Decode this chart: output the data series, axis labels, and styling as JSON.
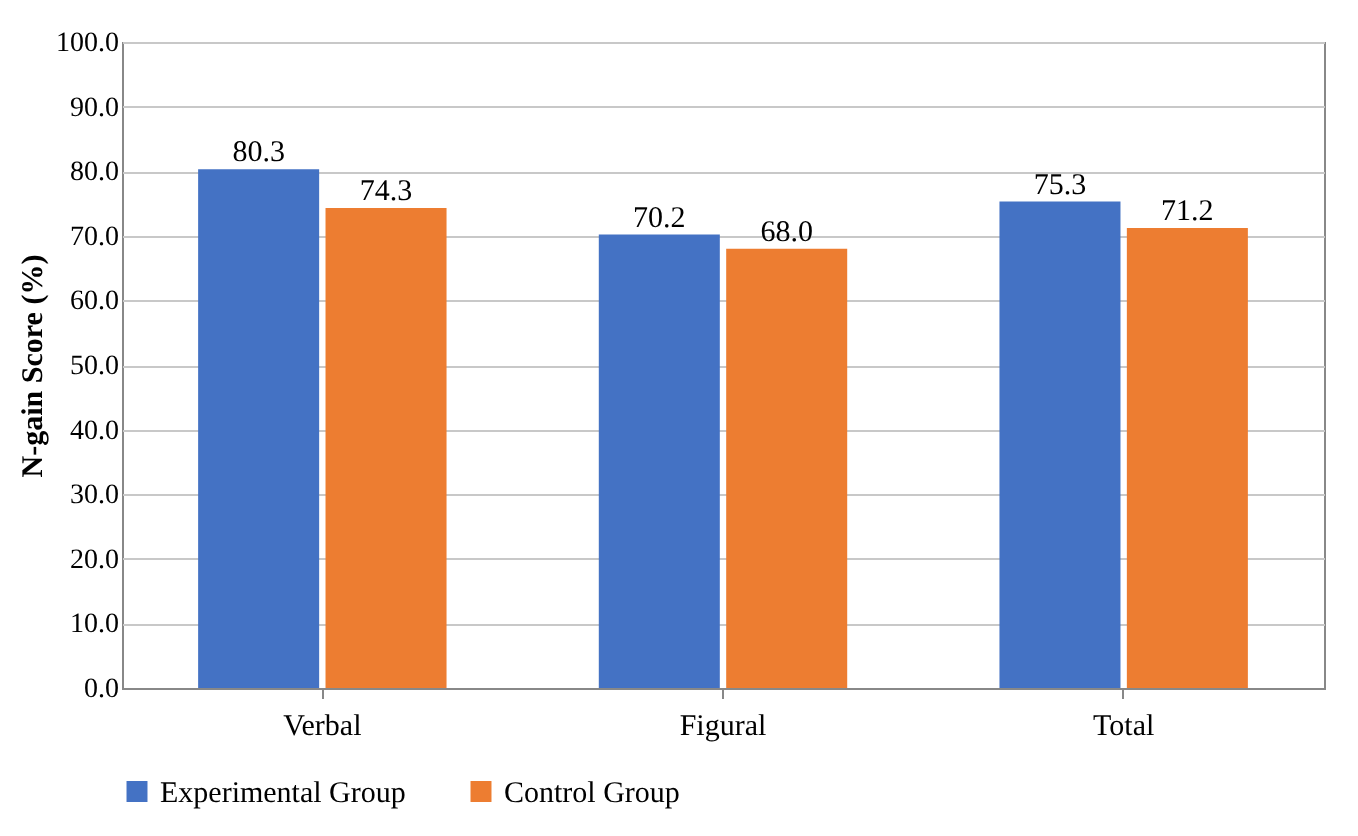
{
  "chart_data": {
    "type": "bar",
    "ylabel": "N-gain Score (%)",
    "categories": [
      "Verbal",
      "Figural",
      "Total"
    ],
    "series": [
      {
        "name": "Experimental Group",
        "color": "#4472c4",
        "values": [
          80.3,
          70.2,
          75.3
        ],
        "value_labels": [
          "80.3",
          "70.2",
          "75.3"
        ]
      },
      {
        "name": "Control Group",
        "color": "#ed7d31",
        "values": [
          74.3,
          68.0,
          71.2
        ],
        "value_labels": [
          "74.3",
          "68.0",
          "71.2"
        ]
      }
    ],
    "ylim": [
      0,
      100
    ],
    "yticks": [
      {
        "value": 0,
        "label": "0.0"
      },
      {
        "value": 10,
        "label": "10.0"
      },
      {
        "value": 20,
        "label": "20.0"
      },
      {
        "value": 30,
        "label": "30.0"
      },
      {
        "value": 40,
        "label": "40.0"
      },
      {
        "value": 50,
        "label": "50.0"
      },
      {
        "value": 60,
        "label": "60.0"
      },
      {
        "value": 70,
        "label": "70.0"
      },
      {
        "value": 80,
        "label": "80.0"
      },
      {
        "value": 90,
        "label": "90.0"
      },
      {
        "value": 100,
        "label": "100.0"
      }
    ],
    "grid": "y",
    "legend": "bottom"
  }
}
